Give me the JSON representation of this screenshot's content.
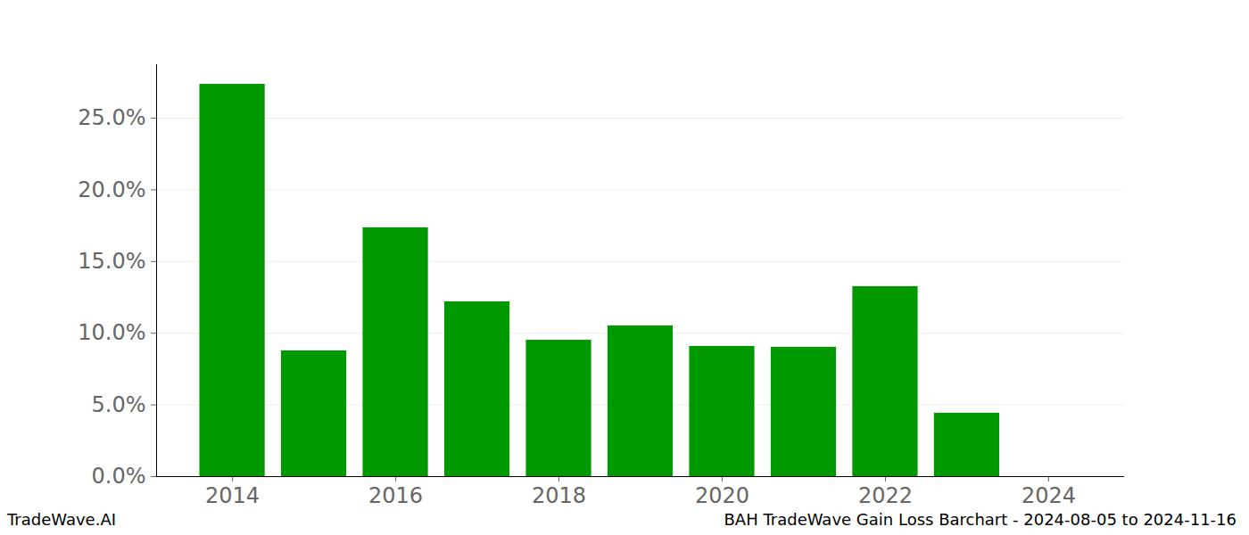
{
  "chart_data": {
    "type": "bar",
    "title": "BAH TradeWave Gain Loss Barchart - 2024-08-05 to 2024-11-16",
    "source": "TradeWave.AI",
    "x": [
      2014,
      2015,
      2016,
      2017,
      2018,
      2019,
      2020,
      2021,
      2022,
      2023
    ],
    "values": [
      27.36,
      8.77,
      17.35,
      12.19,
      9.51,
      10.51,
      9.08,
      9.02,
      13.25,
      4.42
    ],
    "color": "#009900",
    "xlim": [
      2013.07,
      2024.93
    ],
    "xticks": [
      2014,
      2016,
      2018,
      2020,
      2022,
      2024
    ],
    "ylim": [
      0,
      28.73
    ],
    "yticks": [
      {
        "value": 0,
        "label": "0.0%"
      },
      {
        "value": 5,
        "label": "5.0%"
      },
      {
        "value": 10,
        "label": "10.0%"
      },
      {
        "value": 15,
        "label": "15.0%"
      },
      {
        "value": 20,
        "label": "20.0%"
      },
      {
        "value": 25,
        "label": "25.0%"
      }
    ],
    "grid": true
  }
}
